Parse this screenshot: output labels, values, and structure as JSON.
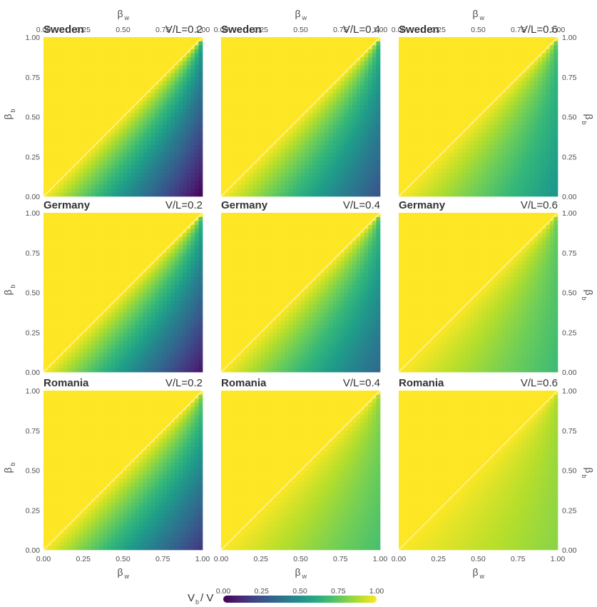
{
  "chart_data": {
    "type": "heatmap",
    "layout": {
      "rows": [
        "Sweden",
        "Germany",
        "Romania"
      ],
      "columns": [
        "V/L=0.2",
        "V/L=0.4",
        "V/L=0.6"
      ]
    },
    "x_axis": {
      "symbol": "β",
      "subscript": "w",
      "range": [
        0,
        1
      ],
      "ticks": [
        "0.00",
        "0.25",
        "0.50",
        "0.75",
        "1.00"
      ]
    },
    "y_axis": {
      "symbol": "β",
      "subscript": "b",
      "range": [
        0,
        1
      ],
      "ticks": [
        "0.00",
        "0.25",
        "0.50",
        "0.75",
        "1.00"
      ]
    },
    "colorbar": {
      "title_main": "V",
      "title_sub": "b",
      "title_rest": "/ V",
      "range": [
        0,
        1
      ],
      "ticks": [
        "0.00",
        "0.25",
        "0.50",
        "0.75",
        "1.00"
      ],
      "palette": "viridis"
    },
    "reference_line": "diagonal y = x (white)",
    "panels": [
      {
        "country": "Sweden",
        "vl_label": "V/L=0.2",
        "at_x1_y0": 0.0,
        "at_x1_y1": 0.55
      },
      {
        "country": "Sweden",
        "vl_label": "V/L=0.4",
        "at_x1_y0": 0.25,
        "at_x1_y1": 0.62
      },
      {
        "country": "Sweden",
        "vl_label": "V/L=0.6",
        "at_x1_y0": 0.52,
        "at_x1_y1": 0.68
      },
      {
        "country": "Germany",
        "vl_label": "V/L=0.2",
        "at_x1_y0": 0.05,
        "at_x1_y1": 0.62
      },
      {
        "country": "Germany",
        "vl_label": "V/L=0.4",
        "at_x1_y0": 0.33,
        "at_x1_y1": 0.66
      },
      {
        "country": "Germany",
        "vl_label": "V/L=0.6",
        "at_x1_y0": 0.68,
        "at_x1_y1": 0.75
      },
      {
        "country": "Romania",
        "vl_label": "V/L=0.2",
        "at_x1_y0": 0.15,
        "at_x1_y1": 0.75
      },
      {
        "country": "Romania",
        "vl_label": "V/L=0.4",
        "at_x1_y0": 0.7,
        "at_x1_y1": 0.82
      },
      {
        "country": "Romania",
        "vl_label": "V/L=0.6",
        "at_x1_y0": 0.82,
        "at_x1_y1": 0.86
      }
    ]
  }
}
